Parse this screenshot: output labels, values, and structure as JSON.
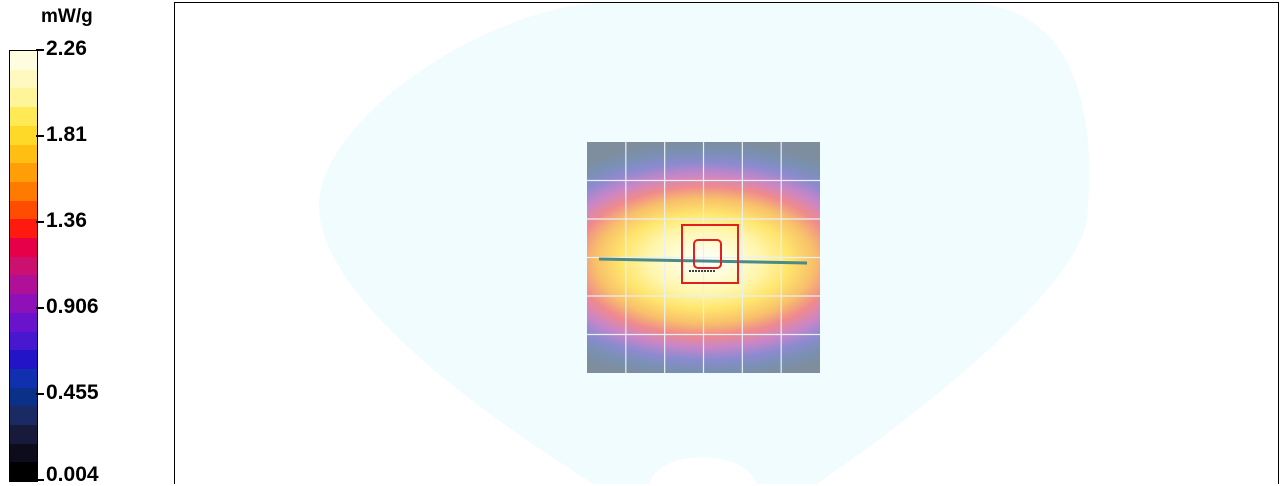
{
  "chart_data": {
    "type": "heatmap",
    "colorbar": {
      "unit": "mW/g",
      "ticks": [
        "2.26",
        "1.81",
        "1.36",
        "0.906",
        "0.455",
        "0.004"
      ],
      "tick_values": [
        2.26,
        1.81,
        1.36,
        0.906,
        0.455,
        0.004
      ],
      "min": 0.004,
      "max": 2.26,
      "colors": [
        "#fffde0",
        "#fff9bf",
        "#fff49a",
        "#ffea56",
        "#ffd928",
        "#ffbe12",
        "#ff9e07",
        "#ff7a00",
        "#ff4d00",
        "#ff1a10",
        "#e6004a",
        "#cc1070",
        "#b01098",
        "#8e10b8",
        "#6a12cc",
        "#4818d0",
        "#2414c8",
        "#1030b0",
        "#0a3088",
        "#1a2a64",
        "#181a3c",
        "#0c0c1c",
        "#000000"
      ]
    },
    "phantom_color": "#f0fcfe",
    "peak_location": "center",
    "grid": true
  }
}
